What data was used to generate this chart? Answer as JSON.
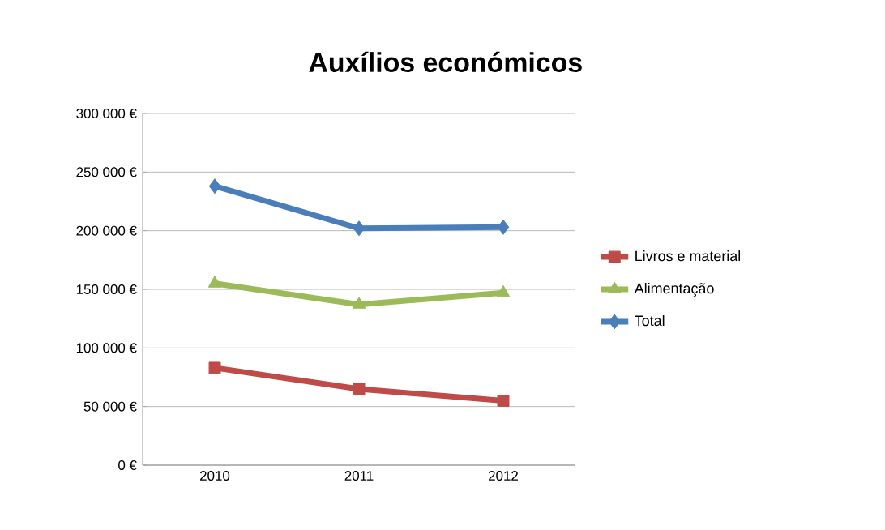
{
  "chart_data": {
    "type": "line",
    "title": "Auxílios económicos",
    "categories": [
      "2010",
      "2011",
      "2012"
    ],
    "series": [
      {
        "name": "Livros e material",
        "color": "#be4b48",
        "marker": "square",
        "values": [
          83000,
          65000,
          55000
        ]
      },
      {
        "name": "Alimentação",
        "color": "#9bbb59",
        "marker": "triangle",
        "values": [
          155000,
          137000,
          147000
        ]
      },
      {
        "name": "Total",
        "color": "#4a7ebb",
        "marker": "diamond",
        "values": [
          238000,
          202000,
          203000
        ]
      }
    ],
    "ylim": [
      0,
      300000
    ],
    "yticks": [
      {
        "value": 0,
        "label": "0 €"
      },
      {
        "value": 50000,
        "label": "50 000 €"
      },
      {
        "value": 100000,
        "label": "100 000 €"
      },
      {
        "value": 150000,
        "label": "150 000 €"
      },
      {
        "value": 200000,
        "label": "200 000 €"
      },
      {
        "value": 250000,
        "label": "250 000 €"
      },
      {
        "value": 300000,
        "label": "300 000 €"
      }
    ],
    "grid": "y",
    "legend": "right",
    "line_style": "solid"
  }
}
